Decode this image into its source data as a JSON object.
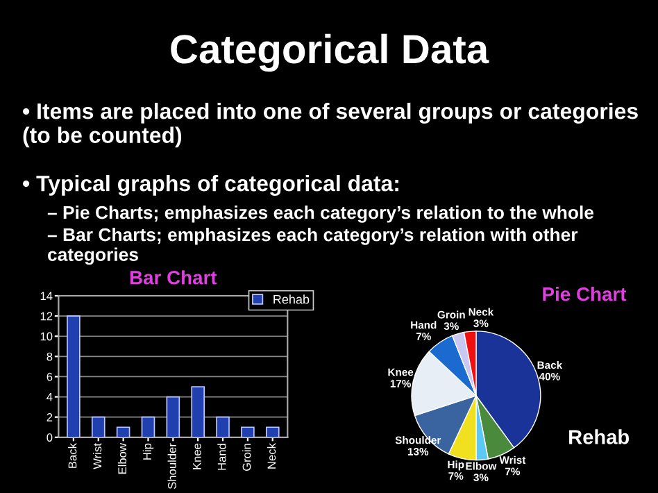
{
  "chart_data": [
    {
      "type": "other",
      "title": "Categorical Data",
      "annotations": [
        "• Items are placed into one of several groups or categories (to be counted)",
        "• Typical graphs of categorical data:",
        "– Pie Charts; emphasizes each category’s relation to the whole",
        "– Bar Charts; emphasizes each category’s relation with other categories"
      ]
    },
    {
      "type": "bar",
      "title": "Bar Chart",
      "categories": [
        "Back",
        "Wrist",
        "Elbow",
        "Hip",
        "Shoulder",
        "Knee",
        "Hand",
        "Groin",
        "Neck"
      ],
      "series": [
        {
          "name": "Rehab",
          "color": "#2040b0",
          "values": [
            12,
            2,
            1,
            2,
            4,
            5,
            2,
            1,
            1
          ]
        }
      ],
      "ylim": [
        0,
        14
      ],
      "yticks": [
        0,
        2,
        4,
        6,
        8,
        10,
        12,
        14
      ],
      "grid": "y",
      "legend": "top right"
    },
    {
      "type": "pie",
      "title": "Pie Chart",
      "categories": [
        "Back",
        "Wrist",
        "Elbow",
        "Hip",
        "Shoulder",
        "Knee",
        "Hand",
        "Groin",
        "Neck"
      ],
      "values": [
        40,
        7,
        3,
        7,
        13,
        17,
        7,
        3,
        3
      ],
      "value_labels": [
        "40%",
        "7%",
        "3%",
        "7%",
        "13%",
        "17%",
        "7%",
        "3%",
        "3%"
      ],
      "colors": [
        "#1a3399",
        "#4a8a3c",
        "#5bc8f5",
        "#f0e020",
        "#3a64a0",
        "#e8eef5",
        "#1a6ad0",
        "#c8c8f0",
        "#f01010"
      ],
      "annotations": [
        "Rehab"
      ]
    }
  ]
}
